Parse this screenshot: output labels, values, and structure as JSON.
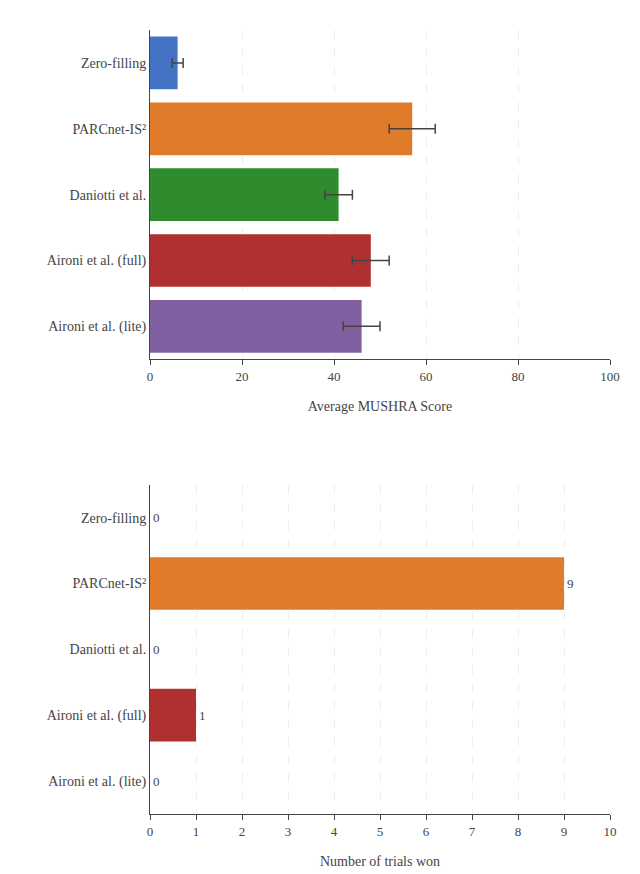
{
  "chart_data": [
    {
      "type": "bar",
      "orientation": "horizontal",
      "categories": [
        "Zero-filling",
        "PARCnet-IS²",
        "Daniotti et al.",
        "Aironi et al. (full)",
        "Aironi et al. (lite)"
      ],
      "values": [
        6.0,
        57.0,
        41.0,
        48.0,
        46.0
      ],
      "errors": [
        1.2,
        5.0,
        3.0,
        4.0,
        4.0
      ],
      "colors": [
        "#4472c4",
        "#e07b2a",
        "#2e8b2e",
        "#b03030",
        "#8060a0"
      ],
      "xlabel": "Average MUSHRA Score",
      "xlim": [
        0,
        100
      ],
      "xticks": [
        0,
        20,
        40,
        60,
        80,
        100
      ],
      "grid": true
    },
    {
      "type": "bar",
      "orientation": "horizontal",
      "categories": [
        "Zero-filling",
        "PARCnet-IS²",
        "Daniotti et al.",
        "Aironi et al. (full)",
        "Aironi et al. (lite)"
      ],
      "values": [
        0,
        9,
        0,
        1,
        0
      ],
      "colors": [
        "#4472c4",
        "#e07b2a",
        "#2e8b2e",
        "#b03030",
        "#8060a0"
      ],
      "xlabel": "Number of trials won",
      "xlim": [
        0,
        10
      ],
      "xticks": [
        0,
        1,
        2,
        3,
        4,
        5,
        6,
        7,
        8,
        9,
        10
      ],
      "grid": true,
      "data_labels": true
    }
  ]
}
